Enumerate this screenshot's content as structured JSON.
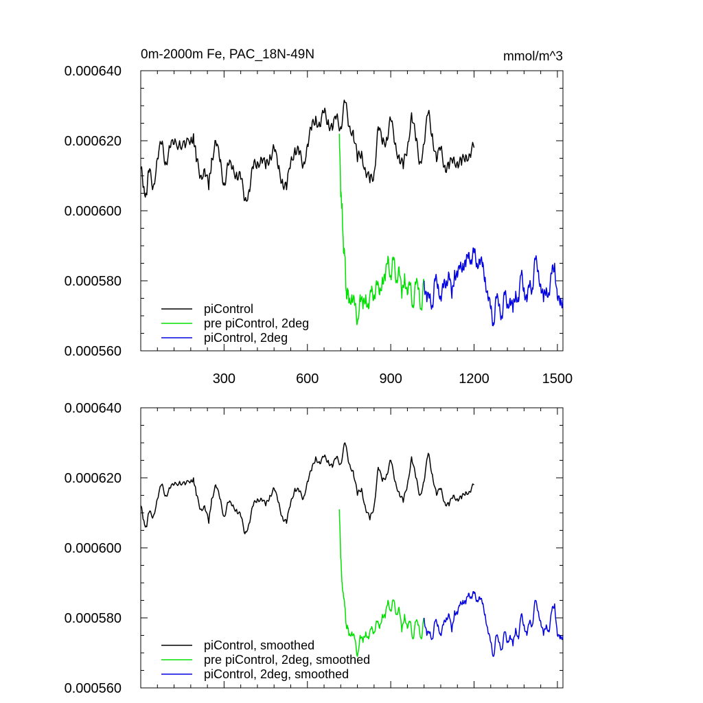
{
  "figure": {
    "title_left": "0m-2000m Fe, PAC_18N-49N",
    "title_right": "mmol/m^3"
  },
  "colors": {
    "piControl": "#000000",
    "pre_piControl_2deg": "#00e000",
    "piControl_2deg": "#0000e0"
  },
  "chart_data": [
    {
      "type": "line",
      "title": "0m-2000m Fe, PAC_18N-49N",
      "units": "mmol/m^3",
      "xlim": [
        0,
        1520
      ],
      "ylim": [
        0.00056,
        0.00064
      ],
      "xticks": [
        300,
        600,
        900,
        1200,
        1500
      ],
      "xtick_labels": [
        "300",
        "600",
        "900",
        "1200",
        "1500"
      ],
      "yticks": [
        0.00056,
        0.00058,
        0.0006,
        0.00062,
        0.00064
      ],
      "ytick_labels": [
        "0.000560",
        "0.000580",
        "0.000600",
        "0.000620",
        "0.000640"
      ],
      "legend": [
        "piControl",
        "pre piControl, 2deg",
        "piControl, 2deg"
      ],
      "legend_position": "bottom-left",
      "series": [
        {
          "name": "piControl",
          "color": "#000000",
          "x": [
            0,
            10,
            20,
            30,
            45,
            60,
            75,
            90,
            105,
            120,
            140,
            160,
            180,
            190,
            200,
            215,
            230,
            245,
            255,
            270,
            285,
            300,
            315,
            330,
            345,
            360,
            375,
            390,
            405,
            420,
            435,
            450,
            465,
            480,
            495,
            510,
            525,
            540,
            555,
            570,
            585,
            600,
            615,
            630,
            645,
            660,
            675,
            690,
            705,
            720,
            735,
            750,
            765,
            780,
            795,
            810,
            825,
            840,
            855,
            870,
            885,
            900,
            915,
            930,
            945,
            960,
            975,
            990,
            1005,
            1020,
            1035,
            1050,
            1065,
            1080,
            1095,
            1110,
            1125,
            1140,
            1155,
            1170,
            1185,
            1200
          ],
          "values": [
            0.000612,
            0.000607,
            0.000605,
            0.000611,
            0.000607,
            0.000615,
            0.000619,
            0.000614,
            0.000618,
            0.000619,
            0.00062,
            0.000618,
            0.00062,
            0.000622,
            0.000614,
            0.00061,
            0.000612,
            0.000606,
            0.000615,
            0.00062,
            0.000614,
            0.000608,
            0.000613,
            0.000612,
            0.000611,
            0.000609,
            0.000603,
            0.000606,
            0.000612,
            0.000614,
            0.000615,
            0.000612,
            0.000616,
            0.000618,
            0.000612,
            0.000609,
            0.000606,
            0.000614,
            0.000618,
            0.000616,
            0.000613,
            0.000619,
            0.000623,
            0.000627,
            0.000624,
            0.000628,
            0.000626,
            0.000623,
            0.000627,
            0.000624,
            0.000631,
            0.000624,
            0.000623,
            0.000614,
            0.000617,
            0.000611,
            0.000608,
            0.000611,
            0.000624,
            0.000619,
            0.000621,
            0.000626,
            0.000619,
            0.000616,
            0.000612,
            0.000618,
            0.000628,
            0.00062,
            0.000614,
            0.000619,
            0.000628,
            0.000622,
            0.000614,
            0.000618,
            0.000613,
            0.000612,
            0.000615,
            0.000614,
            0.000613,
            0.000616,
            0.000616,
            0.000618
          ]
        },
        {
          "name": "pre piControl, 2deg",
          "color": "#00e000",
          "x": [
            715,
            720,
            725,
            730,
            735,
            740,
            745,
            750,
            760,
            770,
            780,
            790,
            800,
            810,
            820,
            830,
            840,
            850,
            860,
            870,
            880,
            890,
            900,
            910,
            920,
            930,
            940,
            950,
            960,
            970,
            980,
            990,
            1000,
            1010,
            1020
          ],
          "values": [
            0.000622,
            0.000604,
            0.000602,
            0.000588,
            0.000587,
            0.000577,
            0.000576,
            0.000574,
            0.000576,
            0.000573,
            0.000568,
            0.000576,
            0.000572,
            0.000576,
            0.000572,
            0.000577,
            0.000576,
            0.000579,
            0.000576,
            0.000581,
            0.00058,
            0.000587,
            0.000581,
            0.000586,
            0.00058,
            0.000584,
            0.000575,
            0.000582,
            0.000576,
            0.000579,
            0.000573,
            0.000579,
            0.000578,
            0.000572,
            0.00058
          ]
        },
        {
          "name": "piControl, 2deg",
          "color": "#0000e0",
          "x": [
            1020,
            1030,
            1040,
            1050,
            1060,
            1070,
            1080,
            1090,
            1100,
            1110,
            1120,
            1130,
            1140,
            1150,
            1160,
            1170,
            1180,
            1190,
            1200,
            1210,
            1220,
            1230,
            1240,
            1250,
            1260,
            1270,
            1280,
            1290,
            1300,
            1310,
            1320,
            1330,
            1340,
            1350,
            1360,
            1370,
            1380,
            1390,
            1400,
            1410,
            1420,
            1430,
            1440,
            1450,
            1460,
            1470,
            1480,
            1490,
            1500,
            1510,
            1520
          ],
          "values": [
            0.00058,
            0.000574,
            0.000576,
            0.000573,
            0.00058,
            0.000579,
            0.000575,
            0.000578,
            0.00058,
            0.000582,
            0.000575,
            0.000583,
            0.000581,
            0.000584,
            0.000585,
            0.000584,
            0.000588,
            0.000586,
            0.000588,
            0.000585,
            0.000586,
            0.000584,
            0.000581,
            0.000575,
            0.000572,
            0.000568,
            0.000575,
            0.000573,
            0.00057,
            0.000576,
            0.000573,
            0.000575,
            0.000571,
            0.000577,
            0.000574,
            0.000582,
            0.000578,
            0.000574,
            0.000579,
            0.000578,
            0.000586,
            0.000583,
            0.000579,
            0.000574,
            0.000578,
            0.000576,
            0.000582,
            0.000585,
            0.000575,
            0.000573,
            0.000575
          ]
        }
      ]
    },
    {
      "type": "line",
      "xlim": [
        0,
        1520
      ],
      "ylim": [
        0.00056,
        0.00064
      ],
      "xticks": [
        300,
        600,
        900,
        1200,
        1500
      ],
      "yticks": [
        0.00056,
        0.00058,
        0.0006,
        0.00062,
        0.00064
      ],
      "ytick_labels": [
        "0.000560",
        "0.000580",
        "0.000600",
        "0.000620",
        "0.000640"
      ],
      "legend": [
        "piControl, smoothed",
        "pre piControl, 2deg, smoothed",
        "piControl, 2deg, smoothed"
      ],
      "legend_position": "bottom-left",
      "series": [
        {
          "name": "piControl, smoothed",
          "color": "#000000",
          "x": [
            0,
            10,
            20,
            30,
            45,
            60,
            75,
            90,
            105,
            120,
            140,
            160,
            180,
            190,
            200,
            215,
            230,
            245,
            255,
            270,
            285,
            300,
            315,
            330,
            345,
            360,
            375,
            390,
            405,
            420,
            435,
            450,
            465,
            480,
            495,
            510,
            525,
            540,
            555,
            570,
            585,
            600,
            615,
            630,
            645,
            660,
            675,
            690,
            705,
            720,
            735,
            750,
            765,
            780,
            795,
            810,
            825,
            840,
            855,
            870,
            885,
            900,
            915,
            930,
            945,
            960,
            975,
            990,
            1005,
            1020,
            1035,
            1050,
            1065,
            1080,
            1095,
            1110,
            1125,
            1140,
            1155,
            1170,
            1185,
            1200
          ],
          "values": [
            0.000612,
            0.000608,
            0.000606,
            0.00061,
            0.000609,
            0.000614,
            0.000618,
            0.000615,
            0.000617,
            0.000618,
            0.000619,
            0.000618,
            0.000619,
            0.00062,
            0.000615,
            0.000611,
            0.000612,
            0.000607,
            0.000614,
            0.000618,
            0.000614,
            0.000609,
            0.000613,
            0.000612,
            0.000611,
            0.000609,
            0.000604,
            0.000607,
            0.000612,
            0.000614,
            0.000614,
            0.000612,
            0.000615,
            0.000617,
            0.000613,
            0.000609,
            0.000607,
            0.000613,
            0.000617,
            0.000616,
            0.000614,
            0.000619,
            0.000622,
            0.000626,
            0.000624,
            0.000626,
            0.000625,
            0.000623,
            0.000626,
            0.000624,
            0.00063,
            0.000624,
            0.000622,
            0.000615,
            0.000617,
            0.000611,
            0.000608,
            0.000612,
            0.000623,
            0.000619,
            0.000621,
            0.000625,
            0.000619,
            0.000616,
            0.000613,
            0.000618,
            0.000626,
            0.00062,
            0.000615,
            0.000619,
            0.000627,
            0.000621,
            0.000615,
            0.000617,
            0.000613,
            0.000612,
            0.000615,
            0.000614,
            0.000614,
            0.000616,
            0.000616,
            0.000618
          ]
        },
        {
          "name": "pre piControl, 2deg, smoothed",
          "color": "#00e000",
          "x": [
            715,
            720,
            725,
            730,
            735,
            740,
            745,
            750,
            760,
            770,
            780,
            790,
            800,
            810,
            820,
            830,
            840,
            850,
            860,
            870,
            880,
            890,
            900,
            910,
            920,
            930,
            940,
            950,
            960,
            970,
            980,
            990,
            1000,
            1010,
            1020
          ],
          "values": [
            0.000611,
            0.000597,
            0.00059,
            0.000586,
            0.000583,
            0.000578,
            0.000577,
            0.000575,
            0.000576,
            0.000574,
            0.000569,
            0.000575,
            0.000573,
            0.000576,
            0.000574,
            0.000577,
            0.000576,
            0.000579,
            0.000577,
            0.000581,
            0.00058,
            0.000585,
            0.000582,
            0.000585,
            0.000581,
            0.000583,
            0.000576,
            0.000581,
            0.000577,
            0.000579,
            0.000574,
            0.000579,
            0.000578,
            0.000574,
            0.00058
          ]
        },
        {
          "name": "piControl, 2deg, smoothed",
          "color": "#0000e0",
          "x": [
            1020,
            1030,
            1040,
            1050,
            1060,
            1070,
            1080,
            1090,
            1100,
            1110,
            1120,
            1130,
            1140,
            1150,
            1160,
            1170,
            1180,
            1190,
            1200,
            1210,
            1220,
            1230,
            1240,
            1250,
            1260,
            1270,
            1280,
            1290,
            1300,
            1310,
            1320,
            1330,
            1340,
            1350,
            1360,
            1370,
            1380,
            1390,
            1400,
            1410,
            1420,
            1430,
            1440,
            1450,
            1460,
            1470,
            1480,
            1490,
            1500,
            1510,
            1520
          ],
          "values": [
            0.00058,
            0.000575,
            0.000576,
            0.000574,
            0.000579,
            0.000578,
            0.000575,
            0.000578,
            0.00058,
            0.000581,
            0.000576,
            0.000582,
            0.000581,
            0.000584,
            0.000585,
            0.000584,
            0.000587,
            0.000586,
            0.000587,
            0.000585,
            0.000586,
            0.000584,
            0.000581,
            0.000576,
            0.000573,
            0.000569,
            0.000575,
            0.000573,
            0.000571,
            0.000576,
            0.000573,
            0.000575,
            0.000572,
            0.000577,
            0.000574,
            0.000581,
            0.000578,
            0.000575,
            0.000579,
            0.000578,
            0.000585,
            0.000582,
            0.000579,
            0.000575,
            0.000578,
            0.000576,
            0.000582,
            0.000584,
            0.000575,
            0.000574,
            0.000575
          ]
        }
      ]
    }
  ]
}
